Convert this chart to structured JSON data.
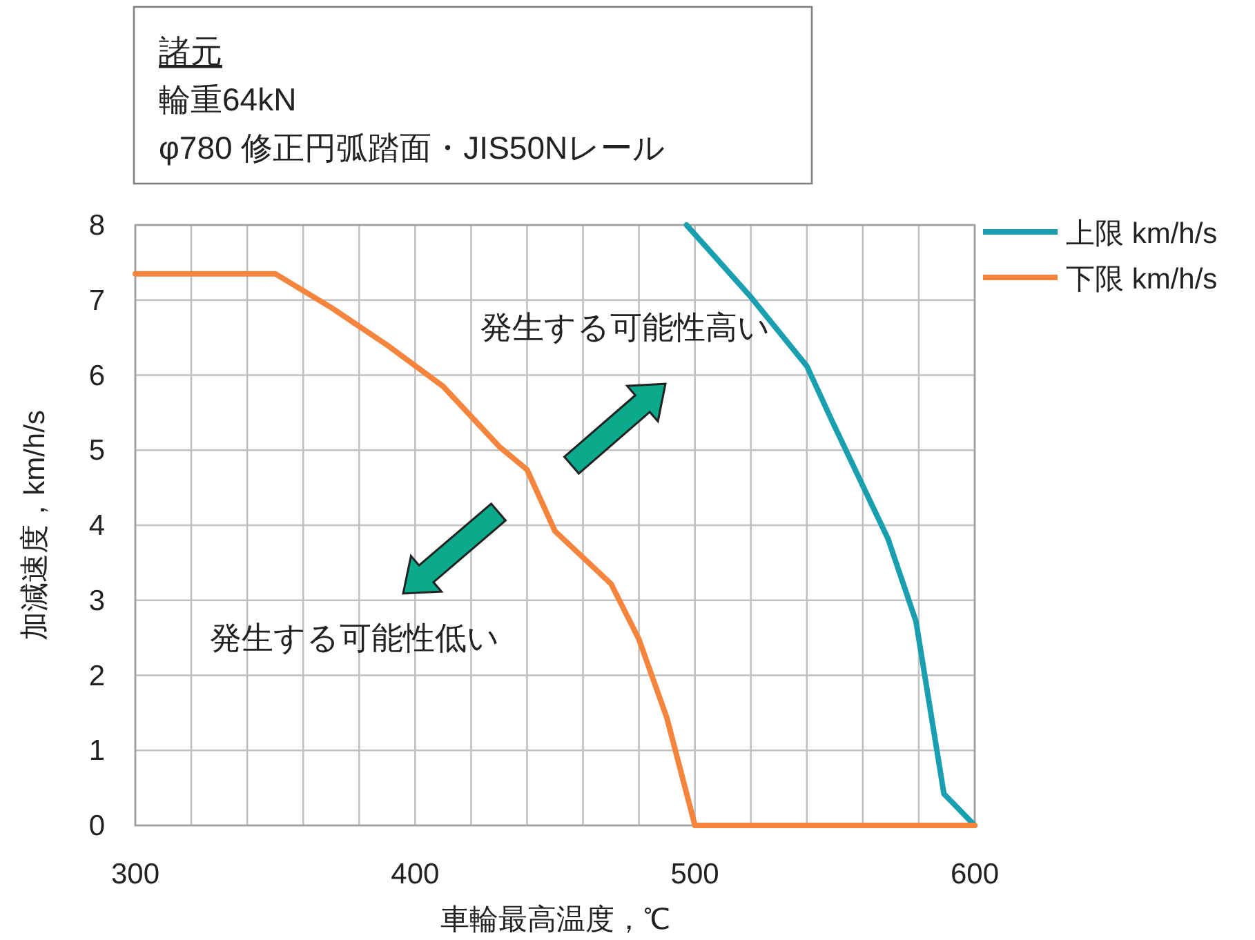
{
  "chart_data": {
    "type": "line",
    "xlabel": "車輪最高温度，℃",
    "ylabel": "加減速度，km/h/s",
    "annotations": [
      "諸元",
      "輪重64kN",
      "φ780 修正円弧踏面・JIS50Nレール",
      "発生する可能性高い",
      "発生する可能性低い"
    ],
    "series": [
      {
        "name": "上限 km/h/s",
        "color": "#1a9fb0",
        "x": [
          497,
          520,
          540,
          549,
          569,
          579,
          589,
          600
        ],
        "values": [
          8,
          7.04,
          6.12,
          5.39,
          3.82,
          2.72,
          0.42,
          0
        ]
      },
      {
        "name": "下限 km/h/s",
        "color": "#f5843c",
        "x": [
          300,
          350,
          370,
          390,
          410,
          430,
          440,
          450,
          470,
          480,
          490,
          500,
          600
        ],
        "values": [
          7.35,
          7.35,
          6.9,
          6.4,
          5.85,
          5.05,
          4.74,
          3.92,
          3.22,
          2.48,
          1.43,
          0,
          0
        ]
      }
    ],
    "xlim": [
      300,
      600
    ],
    "ylim": [
      0,
      8
    ],
    "xticks": [
      300,
      {
        "value": 320,
        "label": null
      },
      {
        "value": 340,
        "label": null
      },
      {
        "value": 360,
        "label": null
      },
      {
        "value": 380,
        "label": null
      },
      400,
      {
        "value": 420,
        "label": null
      },
      {
        "value": 440,
        "label": null
      },
      {
        "value": 460,
        "label": null
      },
      {
        "value": 480,
        "label": null
      },
      500,
      {
        "value": 520,
        "label": null
      },
      {
        "value": 540,
        "label": null
      },
      {
        "value": 560,
        "label": null
      },
      {
        "value": 580,
        "label": null
      },
      600
    ],
    "yticks": [
      0,
      1,
      2,
      3,
      4,
      5,
      6,
      7,
      8
    ],
    "grid": true,
    "legend": "top right",
    "marker": "none",
    "line_style": "solid"
  }
}
